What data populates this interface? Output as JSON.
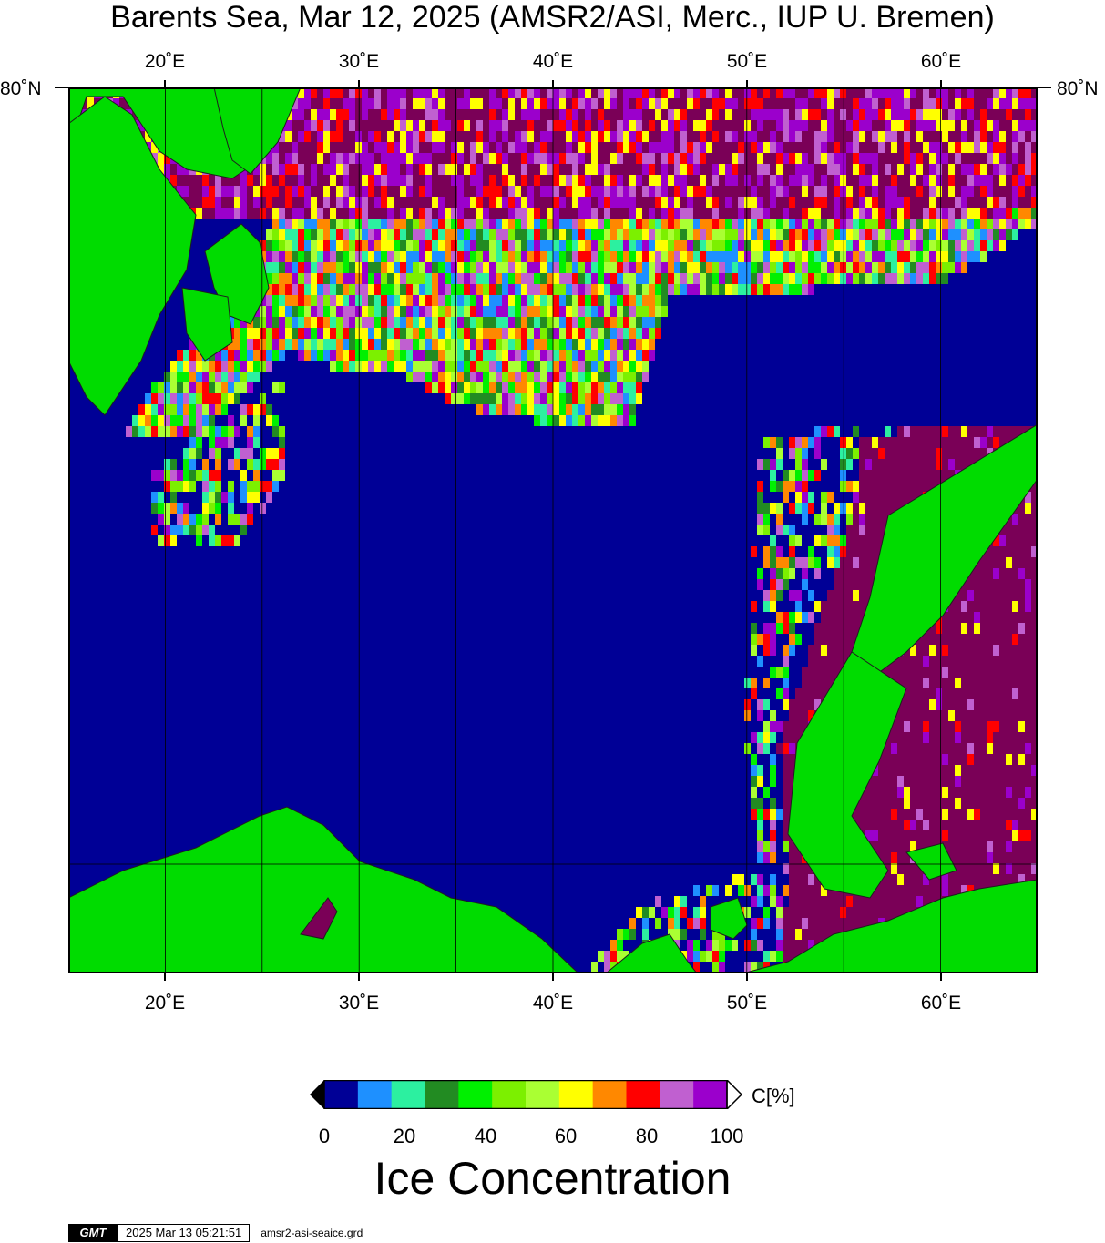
{
  "title": "Barents Sea, Mar 12, 2025 (AMSR2/ASI, Merc., IUP U. Bremen)",
  "map": {
    "lon_range": [
      15,
      65
    ],
    "lon_ticks": [
      "20˚E",
      "30˚E",
      "40˚E",
      "50˚E",
      "60˚E"
    ],
    "lat_label": "80˚N",
    "colors": {
      "open_water": "#000096",
      "land": "#00dc00",
      "full_ice": "#7a0057",
      "coastline": "#1e1e1e"
    }
  },
  "colorbar": {
    "ticks": [
      "0",
      "20",
      "40",
      "60",
      "80",
      "100"
    ],
    "unit": "C[%]",
    "title": "Ice Concentration",
    "colors": [
      "#000096",
      "#1e90ff",
      "#2cf0a0",
      "#228b22",
      "#00f000",
      "#7cf000",
      "#aaff33",
      "#ffff00",
      "#ff8800",
      "#ff0000",
      "#c060d0",
      "#9b00cc"
    ],
    "below_color": "#000000",
    "above_color": "#ffffff"
  },
  "footer": {
    "logo": "GMT",
    "timestamp": "2025 Mar 13 05:21:51",
    "filename": "amsr2-asi-seaice.grd"
  }
}
